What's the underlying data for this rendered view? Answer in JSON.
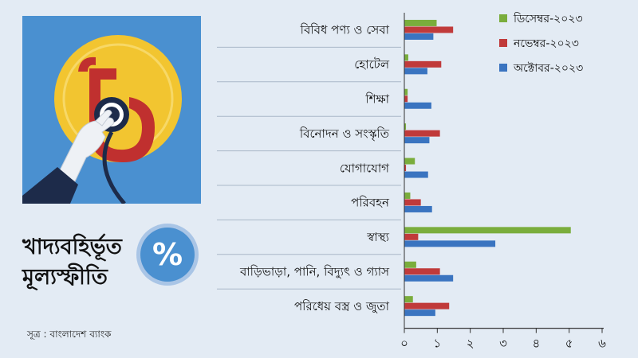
{
  "headline": {
    "line1": "খাদ্যবহির্ভূত",
    "line2": "মূল্যস্ফীতি"
  },
  "badge": {
    "symbol": "%"
  },
  "icons": {
    "illustration": "taka-coin-stethoscope-icon",
    "badge": "percent-icon"
  },
  "source": "সূত্র : বাংলাদেশ ব্যাংক",
  "colors": {
    "background": "#e3ebf4",
    "illustration_bg": "#4a90d0",
    "coin": "#f2c530",
    "taka_sign": "#c0302f"
  },
  "chart_data": {
    "type": "bar",
    "orientation": "horizontal",
    "categories": [
      "বিবিধ পণ্য ও সেবা",
      "হোটেল",
      "শিক্ষা",
      "বিনোদন ও সংস্কৃতি",
      "যোগাযোগ",
      "পরিবহন",
      "স্বাস্থ্য",
      "বাড়িভাড়া, পানি, বিদ্যুৎ ও গ্যাস",
      "পরিধেয় বস্ত্র ও জুতা"
    ],
    "series": [
      {
        "name": "ডিসেম্বর-২০২৩",
        "color": "#7aad3c",
        "values": [
          0.98,
          0.12,
          0.1,
          0.05,
          0.32,
          0.18,
          5.05,
          0.36,
          0.26
        ]
      },
      {
        "name": "নভেম্বর-২০২৩",
        "color": "#c03a3a",
        "values": [
          1.48,
          1.12,
          0.1,
          1.08,
          0.05,
          0.5,
          0.42,
          1.08,
          1.36
        ]
      },
      {
        "name": "অক্টোবর-২০২৩",
        "color": "#3a74c0",
        "values": [
          0.88,
          0.7,
          0.82,
          0.76,
          0.72,
          0.84,
          2.76,
          1.48,
          0.94
        ]
      }
    ],
    "xticks": [
      "০",
      "১",
      "২",
      "৩",
      "৪",
      "৫",
      "৬"
    ],
    "xlim": [
      0,
      6
    ],
    "legend_position": "top-right",
    "grid": false
  }
}
